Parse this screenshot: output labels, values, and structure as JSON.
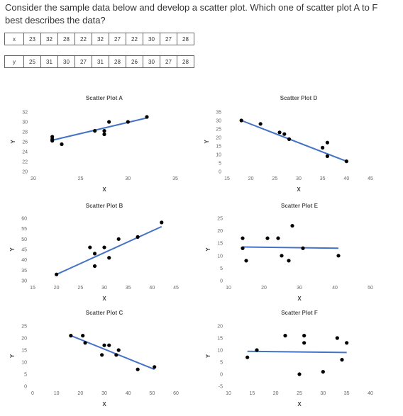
{
  "question": "Consider the sample data below and develop a scatter plot. Which one of scatter plot A to F best describes the data?",
  "table": {
    "x_label": "x",
    "y_label": "y",
    "x_values": [
      23,
      32,
      28,
      22,
      32,
      27,
      22,
      30,
      27,
      28
    ],
    "y_values": [
      25,
      31,
      30,
      27,
      31,
      28,
      26,
      30,
      27,
      28
    ]
  },
  "colors": {
    "point": "#000000",
    "trendline": "#4472c4",
    "axis_text": "#666666"
  },
  "chart_data": [
    {
      "id": "A",
      "type": "scatter",
      "title": "Scatter Plot A",
      "xlabel": "X",
      "ylabel": "Y",
      "xlim": [
        20,
        35
      ],
      "ylim": [
        20,
        32
      ],
      "xticks": [
        20,
        25,
        30,
        35
      ],
      "yticks": [
        20,
        22,
        24,
        26,
        28,
        30,
        32
      ],
      "points": [
        [
          22,
          26.5
        ],
        [
          22,
          27
        ],
        [
          22,
          26.2
        ],
        [
          23,
          25.5
        ],
        [
          26.5,
          28.2
        ],
        [
          27.5,
          28.2
        ],
        [
          27.5,
          27.5
        ],
        [
          28,
          30
        ],
        [
          30,
          30
        ],
        [
          32,
          31
        ]
      ],
      "trendline": [
        [
          22,
          26.3
        ],
        [
          32,
          30.8
        ]
      ]
    },
    {
      "id": "D",
      "type": "scatter",
      "title": "Scatter Plot D",
      "xlabel": "X",
      "ylabel": "Y",
      "xlim": [
        15,
        45
      ],
      "ylim": [
        0,
        35
      ],
      "xticks": [
        15,
        20,
        25,
        30,
        35,
        40,
        45
      ],
      "yticks": [
        0,
        5,
        10,
        15,
        20,
        25,
        30,
        35
      ],
      "points": [
        [
          18,
          30
        ],
        [
          22,
          28
        ],
        [
          26,
          23
        ],
        [
          27,
          22
        ],
        [
          28,
          19
        ],
        [
          35,
          14
        ],
        [
          36,
          17
        ],
        [
          36,
          9
        ],
        [
          40,
          6
        ]
      ],
      "trendline": [
        [
          18,
          30
        ],
        [
          40,
          6
        ]
      ]
    },
    {
      "id": "B",
      "type": "scatter",
      "title": "Scatter Plot B",
      "xlabel": "X",
      "ylabel": "Y",
      "xlim": [
        15,
        45
      ],
      "ylim": [
        30,
        60
      ],
      "xticks": [
        15,
        20,
        25,
        30,
        35,
        40,
        45
      ],
      "yticks": [
        30,
        35,
        40,
        45,
        50,
        55,
        60
      ],
      "points": [
        [
          20,
          33
        ],
        [
          27,
          46
        ],
        [
          28,
          43
        ],
        [
          28,
          37
        ],
        [
          30,
          46
        ],
        [
          31,
          41
        ],
        [
          33,
          50
        ],
        [
          37,
          51
        ],
        [
          42,
          58
        ]
      ],
      "trendline": [
        [
          20,
          33
        ],
        [
          42,
          56
        ]
      ]
    },
    {
      "id": "E",
      "type": "scatter",
      "title": "Scatter Plot E",
      "xlabel": "X",
      "ylabel": "Y",
      "xlim": [
        10,
        50
      ],
      "ylim": [
        0,
        25
      ],
      "xticks": [
        10,
        20,
        30,
        40,
        50
      ],
      "yticks": [
        0,
        5,
        10,
        15,
        20,
        25
      ],
      "points": [
        [
          14,
          17
        ],
        [
          14,
          13
        ],
        [
          15,
          8
        ],
        [
          21,
          17
        ],
        [
          24,
          17
        ],
        [
          25,
          10
        ],
        [
          27,
          8
        ],
        [
          28,
          22
        ],
        [
          31,
          13
        ],
        [
          41,
          10
        ]
      ],
      "trendline": [
        [
          14,
          13.5
        ],
        [
          41,
          13
        ]
      ]
    },
    {
      "id": "C",
      "type": "scatter",
      "title": "Scatter Plot C",
      "xlabel": "X",
      "ylabel": "Y",
      "xlim": [
        0,
        60
      ],
      "ylim": [
        0,
        25
      ],
      "xticks": [
        0,
        10,
        20,
        30,
        40,
        50,
        60
      ],
      "yticks": [
        0,
        5,
        10,
        15,
        20,
        25
      ],
      "points": [
        [
          16,
          21
        ],
        [
          21,
          21
        ],
        [
          22,
          18
        ],
        [
          29,
          13
        ],
        [
          30,
          17
        ],
        [
          32,
          17
        ],
        [
          35,
          13
        ],
        [
          36,
          15
        ],
        [
          44,
          7
        ],
        [
          51,
          8
        ]
      ],
      "trendline": [
        [
          16,
          21
        ],
        [
          51,
          7
        ]
      ]
    },
    {
      "id": "F",
      "type": "scatter",
      "title": "Scatter Plot F",
      "xlabel": "X",
      "ylabel": "Y",
      "xlim": [
        10,
        40
      ],
      "ylim": [
        -5,
        20
      ],
      "xticks": [
        10,
        15,
        20,
        25,
        30,
        35,
        40
      ],
      "yticks": [
        -5,
        0,
        5,
        10,
        15,
        20
      ],
      "points": [
        [
          14,
          7
        ],
        [
          16,
          10
        ],
        [
          22,
          16
        ],
        [
          25,
          0
        ],
        [
          26,
          16
        ],
        [
          26,
          13
        ],
        [
          30,
          1
        ],
        [
          33,
          15
        ],
        [
          34,
          6
        ],
        [
          35,
          13
        ]
      ],
      "trendline": [
        [
          14,
          9.5
        ],
        [
          35,
          9
        ]
      ]
    }
  ]
}
